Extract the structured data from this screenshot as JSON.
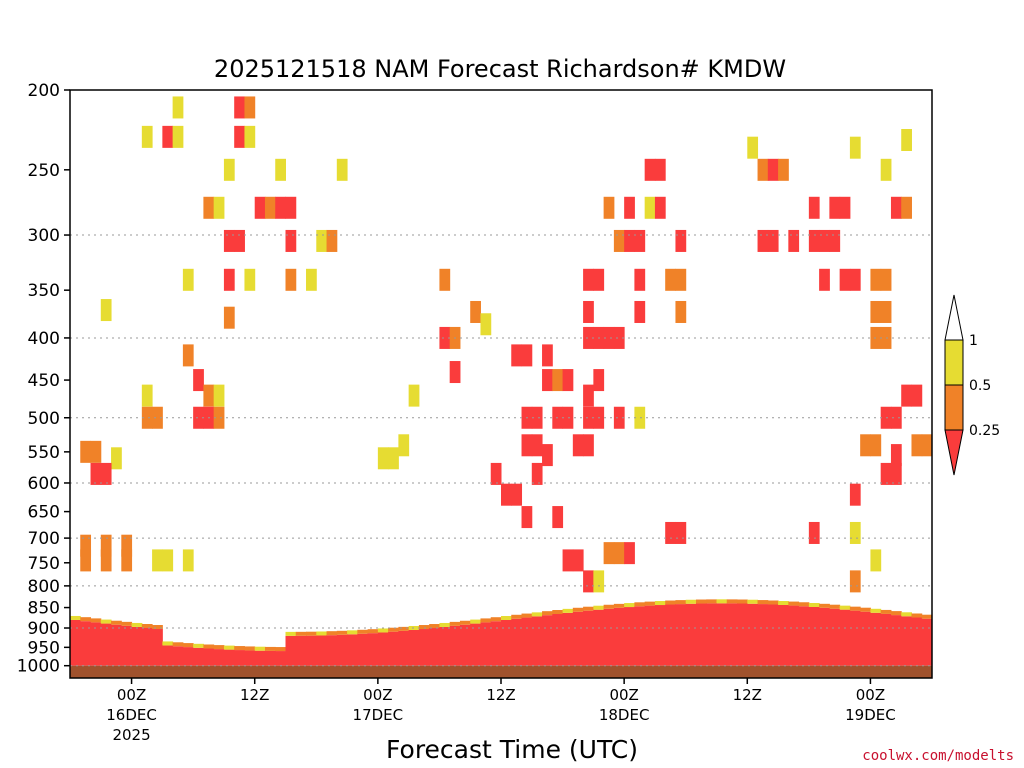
{
  "colors": {
    "ri_lt_025": "#fa3c3c",
    "ri_025_05": "#f08228",
    "ri_05_1": "#e6dc32",
    "ri_gt_1": "#ffffff",
    "ground": "#a0522d"
  },
  "chart_data": {
    "type": "heatmap",
    "title": "2025121518 NAM Forecast Richardson# KMDW",
    "xlabel": "Forecast Time (UTC)",
    "ylabel": "",
    "y_axis": {
      "scale": "log-pressure",
      "range_hpa": [
        1035,
        200
      ],
      "ticks": [
        "200",
        "250",
        "300",
        "350",
        "400",
        "450",
        "500",
        "550",
        "600",
        "650",
        "700",
        "750",
        "800",
        "850",
        "900",
        "950",
        "1000"
      ],
      "gridlines_hpa": [
        300,
        400,
        500,
        600,
        700,
        800,
        900,
        1000
      ]
    },
    "x_axis": {
      "range_hours": [
        -6,
        78
      ],
      "ticks": [
        {
          "hour": 0,
          "label": "00Z",
          "date": "16DEC",
          "year": "2025"
        },
        {
          "hour": 12,
          "label": "12Z",
          "date": "",
          "year": ""
        },
        {
          "hour": 24,
          "label": "00Z",
          "date": "17DEC",
          "year": ""
        },
        {
          "hour": 36,
          "label": "12Z",
          "date": "",
          "year": ""
        },
        {
          "hour": 48,
          "label": "00Z",
          "date": "18DEC",
          "year": ""
        },
        {
          "hour": 60,
          "label": "12Z",
          "date": "",
          "year": ""
        },
        {
          "hour": 72,
          "label": "00Z",
          "date": "19DEC",
          "year": ""
        }
      ]
    },
    "legend": {
      "placement": "right",
      "labels": [
        "1",
        "0.5",
        "0.25"
      ],
      "classes": [
        {
          "range": "< 0.25",
          "color": "#fa3c3c"
        },
        {
          "range": "0.25 - 0.5",
          "color": "#f08228"
        },
        {
          "range": "0.5 - 1",
          "color": "#e6dc32"
        },
        {
          "range": "> 1",
          "color": "#ffffff"
        }
      ]
    },
    "ground_pressure_hpa": 1000,
    "cells": [
      {
        "t": 4,
        "p": 210,
        "c": 2
      },
      {
        "t": 10,
        "p": 210,
        "c": 0
      },
      {
        "t": 11,
        "p": 210,
        "c": 1
      },
      {
        "t": 1,
        "p": 228,
        "c": 2
      },
      {
        "t": 3,
        "p": 228,
        "c": 0
      },
      {
        "t": 4,
        "p": 228,
        "c": 2
      },
      {
        "t": 10,
        "p": 228,
        "c": 0
      },
      {
        "t": 11,
        "p": 228,
        "c": 2
      },
      {
        "t": 9,
        "p": 250,
        "c": 2
      },
      {
        "t": 14,
        "p": 250,
        "c": 2
      },
      {
        "t": 20,
        "p": 250,
        "c": 2
      },
      {
        "t": 50,
        "p": 250,
        "c": 0
      },
      {
        "t": 51,
        "p": 250,
        "c": 0
      },
      {
        "t": 60,
        "p": 235,
        "c": 2
      },
      {
        "t": 61,
        "p": 250,
        "c": 1
      },
      {
        "t": 62,
        "p": 250,
        "c": 0
      },
      {
        "t": 63,
        "p": 250,
        "c": 1
      },
      {
        "t": 70,
        "p": 235,
        "c": 2
      },
      {
        "t": 73,
        "p": 250,
        "c": 2
      },
      {
        "t": 75,
        "p": 230,
        "c": 2
      },
      {
        "t": 7,
        "p": 278,
        "c": 1
      },
      {
        "t": 8,
        "p": 278,
        "c": 2
      },
      {
        "t": 12,
        "p": 278,
        "c": 0
      },
      {
        "t": 13,
        "p": 278,
        "c": 1
      },
      {
        "t": 14,
        "p": 278,
        "c": 0
      },
      {
        "t": 15,
        "p": 278,
        "c": 0
      },
      {
        "t": 46,
        "p": 278,
        "c": 1
      },
      {
        "t": 48,
        "p": 278,
        "c": 0
      },
      {
        "t": 50,
        "p": 278,
        "c": 2
      },
      {
        "t": 51,
        "p": 278,
        "c": 0
      },
      {
        "t": 66,
        "p": 278,
        "c": 0
      },
      {
        "t": 68,
        "p": 278,
        "c": 0
      },
      {
        "t": 69,
        "p": 278,
        "c": 0
      },
      {
        "t": 74,
        "p": 278,
        "c": 0
      },
      {
        "t": 75,
        "p": 278,
        "c": 1
      },
      {
        "t": 9,
        "p": 305,
        "c": 0
      },
      {
        "t": 10,
        "p": 305,
        "c": 0
      },
      {
        "t": 15,
        "p": 305,
        "c": 0
      },
      {
        "t": 18,
        "p": 305,
        "c": 2
      },
      {
        "t": 19,
        "p": 305,
        "c": 1
      },
      {
        "t": 47,
        "p": 305,
        "c": 1
      },
      {
        "t": 48,
        "p": 305,
        "c": 0
      },
      {
        "t": 49,
        "p": 305,
        "c": 0
      },
      {
        "t": 53,
        "p": 305,
        "c": 0
      },
      {
        "t": 61,
        "p": 305,
        "c": 0
      },
      {
        "t": 62,
        "p": 305,
        "c": 0
      },
      {
        "t": 64,
        "p": 305,
        "c": 0
      },
      {
        "t": 66,
        "p": 305,
        "c": 0
      },
      {
        "t": 67,
        "p": 305,
        "c": 0
      },
      {
        "t": 68,
        "p": 305,
        "c": 0
      },
      {
        "t": 5,
        "p": 340,
        "c": 2
      },
      {
        "t": 9,
        "p": 340,
        "c": 0
      },
      {
        "t": 11,
        "p": 340,
        "c": 2
      },
      {
        "t": 15,
        "p": 340,
        "c": 1
      },
      {
        "t": 17,
        "p": 340,
        "c": 2
      },
      {
        "t": 30,
        "p": 340,
        "c": 1
      },
      {
        "t": 44,
        "p": 340,
        "c": 0
      },
      {
        "t": 45,
        "p": 340,
        "c": 0
      },
      {
        "t": 49,
        "p": 340,
        "c": 0
      },
      {
        "t": 52,
        "p": 340,
        "c": 1
      },
      {
        "t": 53,
        "p": 340,
        "c": 1
      },
      {
        "t": 67,
        "p": 340,
        "c": 0
      },
      {
        "t": 69,
        "p": 340,
        "c": 0
      },
      {
        "t": 70,
        "p": 340,
        "c": 0
      },
      {
        "t": 72,
        "p": 340,
        "c": 1
      },
      {
        "t": 73,
        "p": 340,
        "c": 1
      },
      {
        "t": -3,
        "p": 370,
        "c": 2
      },
      {
        "t": 9,
        "p": 378,
        "c": 1
      },
      {
        "t": 33,
        "p": 372,
        "c": 1
      },
      {
        "t": 34,
        "p": 385,
        "c": 2
      },
      {
        "t": 44,
        "p": 372,
        "c": 0
      },
      {
        "t": 49,
        "p": 372,
        "c": 0
      },
      {
        "t": 53,
        "p": 372,
        "c": 1
      },
      {
        "t": 72,
        "p": 372,
        "c": 1
      },
      {
        "t": 73,
        "p": 372,
        "c": 1
      },
      {
        "t": 5,
        "p": 420,
        "c": 1
      },
      {
        "t": 30,
        "p": 400,
        "c": 0
      },
      {
        "t": 31,
        "p": 400,
        "c": 1
      },
      {
        "t": 37,
        "p": 420,
        "c": 0
      },
      {
        "t": 38,
        "p": 420,
        "c": 0
      },
      {
        "t": 40,
        "p": 420,
        "c": 0
      },
      {
        "t": 44,
        "p": 400,
        "c": 0
      },
      {
        "t": 45,
        "p": 400,
        "c": 0
      },
      {
        "t": 46,
        "p": 400,
        "c": 0
      },
      {
        "t": 47,
        "p": 400,
        "c": 0
      },
      {
        "t": 72,
        "p": 400,
        "c": 1
      },
      {
        "t": 73,
        "p": 400,
        "c": 1
      },
      {
        "t": 1,
        "p": 470,
        "c": 2
      },
      {
        "t": 6,
        "p": 450,
        "c": 0
      },
      {
        "t": 7,
        "p": 470,
        "c": 1
      },
      {
        "t": 8,
        "p": 470,
        "c": 2
      },
      {
        "t": 27,
        "p": 470,
        "c": 2
      },
      {
        "t": 31,
        "p": 440,
        "c": 0
      },
      {
        "t": 40,
        "p": 450,
        "c": 0
      },
      {
        "t": 41,
        "p": 450,
        "c": 1
      },
      {
        "t": 42,
        "p": 450,
        "c": 0
      },
      {
        "t": 44,
        "p": 470,
        "c": 0
      },
      {
        "t": 45,
        "p": 450,
        "c": 0
      },
      {
        "t": 75,
        "p": 470,
        "c": 0
      },
      {
        "t": 76,
        "p": 470,
        "c": 0
      },
      {
        "t": 1,
        "p": 500,
        "c": 1
      },
      {
        "t": 2,
        "p": 500,
        "c": 1
      },
      {
        "t": 6,
        "p": 500,
        "c": 0
      },
      {
        "t": 7,
        "p": 500,
        "c": 0
      },
      {
        "t": 8,
        "p": 500,
        "c": 1
      },
      {
        "t": 38,
        "p": 500,
        "c": 0
      },
      {
        "t": 39,
        "p": 500,
        "c": 0
      },
      {
        "t": 41,
        "p": 500,
        "c": 0
      },
      {
        "t": 42,
        "p": 500,
        "c": 0
      },
      {
        "t": 44,
        "p": 500,
        "c": 0
      },
      {
        "t": 45,
        "p": 500,
        "c": 0
      },
      {
        "t": 47,
        "p": 500,
        "c": 0
      },
      {
        "t": 49,
        "p": 500,
        "c": 2
      },
      {
        "t": 73,
        "p": 500,
        "c": 0
      },
      {
        "t": 74,
        "p": 500,
        "c": 0
      },
      {
        "t": -5,
        "p": 550,
        "c": 1
      },
      {
        "t": -4,
        "p": 550,
        "c": 1
      },
      {
        "t": -2,
        "p": 560,
        "c": 2
      },
      {
        "t": 24,
        "p": 560,
        "c": 2
      },
      {
        "t": 25,
        "p": 560,
        "c": 2
      },
      {
        "t": 26,
        "p": 540,
        "c": 2
      },
      {
        "t": 38,
        "p": 540,
        "c": 0
      },
      {
        "t": 39,
        "p": 540,
        "c": 0
      },
      {
        "t": 40,
        "p": 555,
        "c": 0
      },
      {
        "t": 43,
        "p": 540,
        "c": 0
      },
      {
        "t": 44,
        "p": 540,
        "c": 0
      },
      {
        "t": 71,
        "p": 540,
        "c": 1
      },
      {
        "t": 72,
        "p": 540,
        "c": 1
      },
      {
        "t": 74,
        "p": 555,
        "c": 0
      },
      {
        "t": 76,
        "p": 540,
        "c": 1
      },
      {
        "t": 77,
        "p": 540,
        "c": 1
      },
      {
        "t": -4,
        "p": 585,
        "c": 0
      },
      {
        "t": -3,
        "p": 585,
        "c": 0
      },
      {
        "t": 35,
        "p": 585,
        "c": 0
      },
      {
        "t": 39,
        "p": 585,
        "c": 0
      },
      {
        "t": 73,
        "p": 585,
        "c": 0
      },
      {
        "t": 74,
        "p": 585,
        "c": 0
      },
      {
        "t": 36,
        "p": 620,
        "c": 0
      },
      {
        "t": 37,
        "p": 620,
        "c": 0
      },
      {
        "t": 70,
        "p": 620,
        "c": 0
      },
      {
        "t": 38,
        "p": 660,
        "c": 0
      },
      {
        "t": 41,
        "p": 660,
        "c": 0
      },
      {
        "t": 52,
        "p": 690,
        "c": 0
      },
      {
        "t": 53,
        "p": 690,
        "c": 0
      },
      {
        "t": 66,
        "p": 690,
        "c": 0
      },
      {
        "t": 70,
        "p": 690,
        "c": 2
      },
      {
        "t": -5,
        "p": 715,
        "c": 1
      },
      {
        "t": -3,
        "p": 715,
        "c": 1
      },
      {
        "t": -1,
        "p": 715,
        "c": 1
      },
      {
        "t": -5,
        "p": 745,
        "c": 1
      },
      {
        "t": -3,
        "p": 745,
        "c": 1
      },
      {
        "t": -1,
        "p": 745,
        "c": 1
      },
      {
        "t": 2,
        "p": 745,
        "c": 2
      },
      {
        "t": 3,
        "p": 745,
        "c": 2
      },
      {
        "t": 5,
        "p": 745,
        "c": 2
      },
      {
        "t": 42,
        "p": 745,
        "c": 0
      },
      {
        "t": 43,
        "p": 745,
        "c": 0
      },
      {
        "t": 46,
        "p": 730,
        "c": 1
      },
      {
        "t": 47,
        "p": 730,
        "c": 1
      },
      {
        "t": 48,
        "p": 730,
        "c": 0
      },
      {
        "t": 72,
        "p": 745,
        "c": 2
      },
      {
        "t": 44,
        "p": 790,
        "c": 0
      },
      {
        "t": 45,
        "p": 790,
        "c": 2
      },
      {
        "t": 70,
        "p": 790,
        "c": 1
      }
    ]
  },
  "credit": "coolwx.com/modelts"
}
